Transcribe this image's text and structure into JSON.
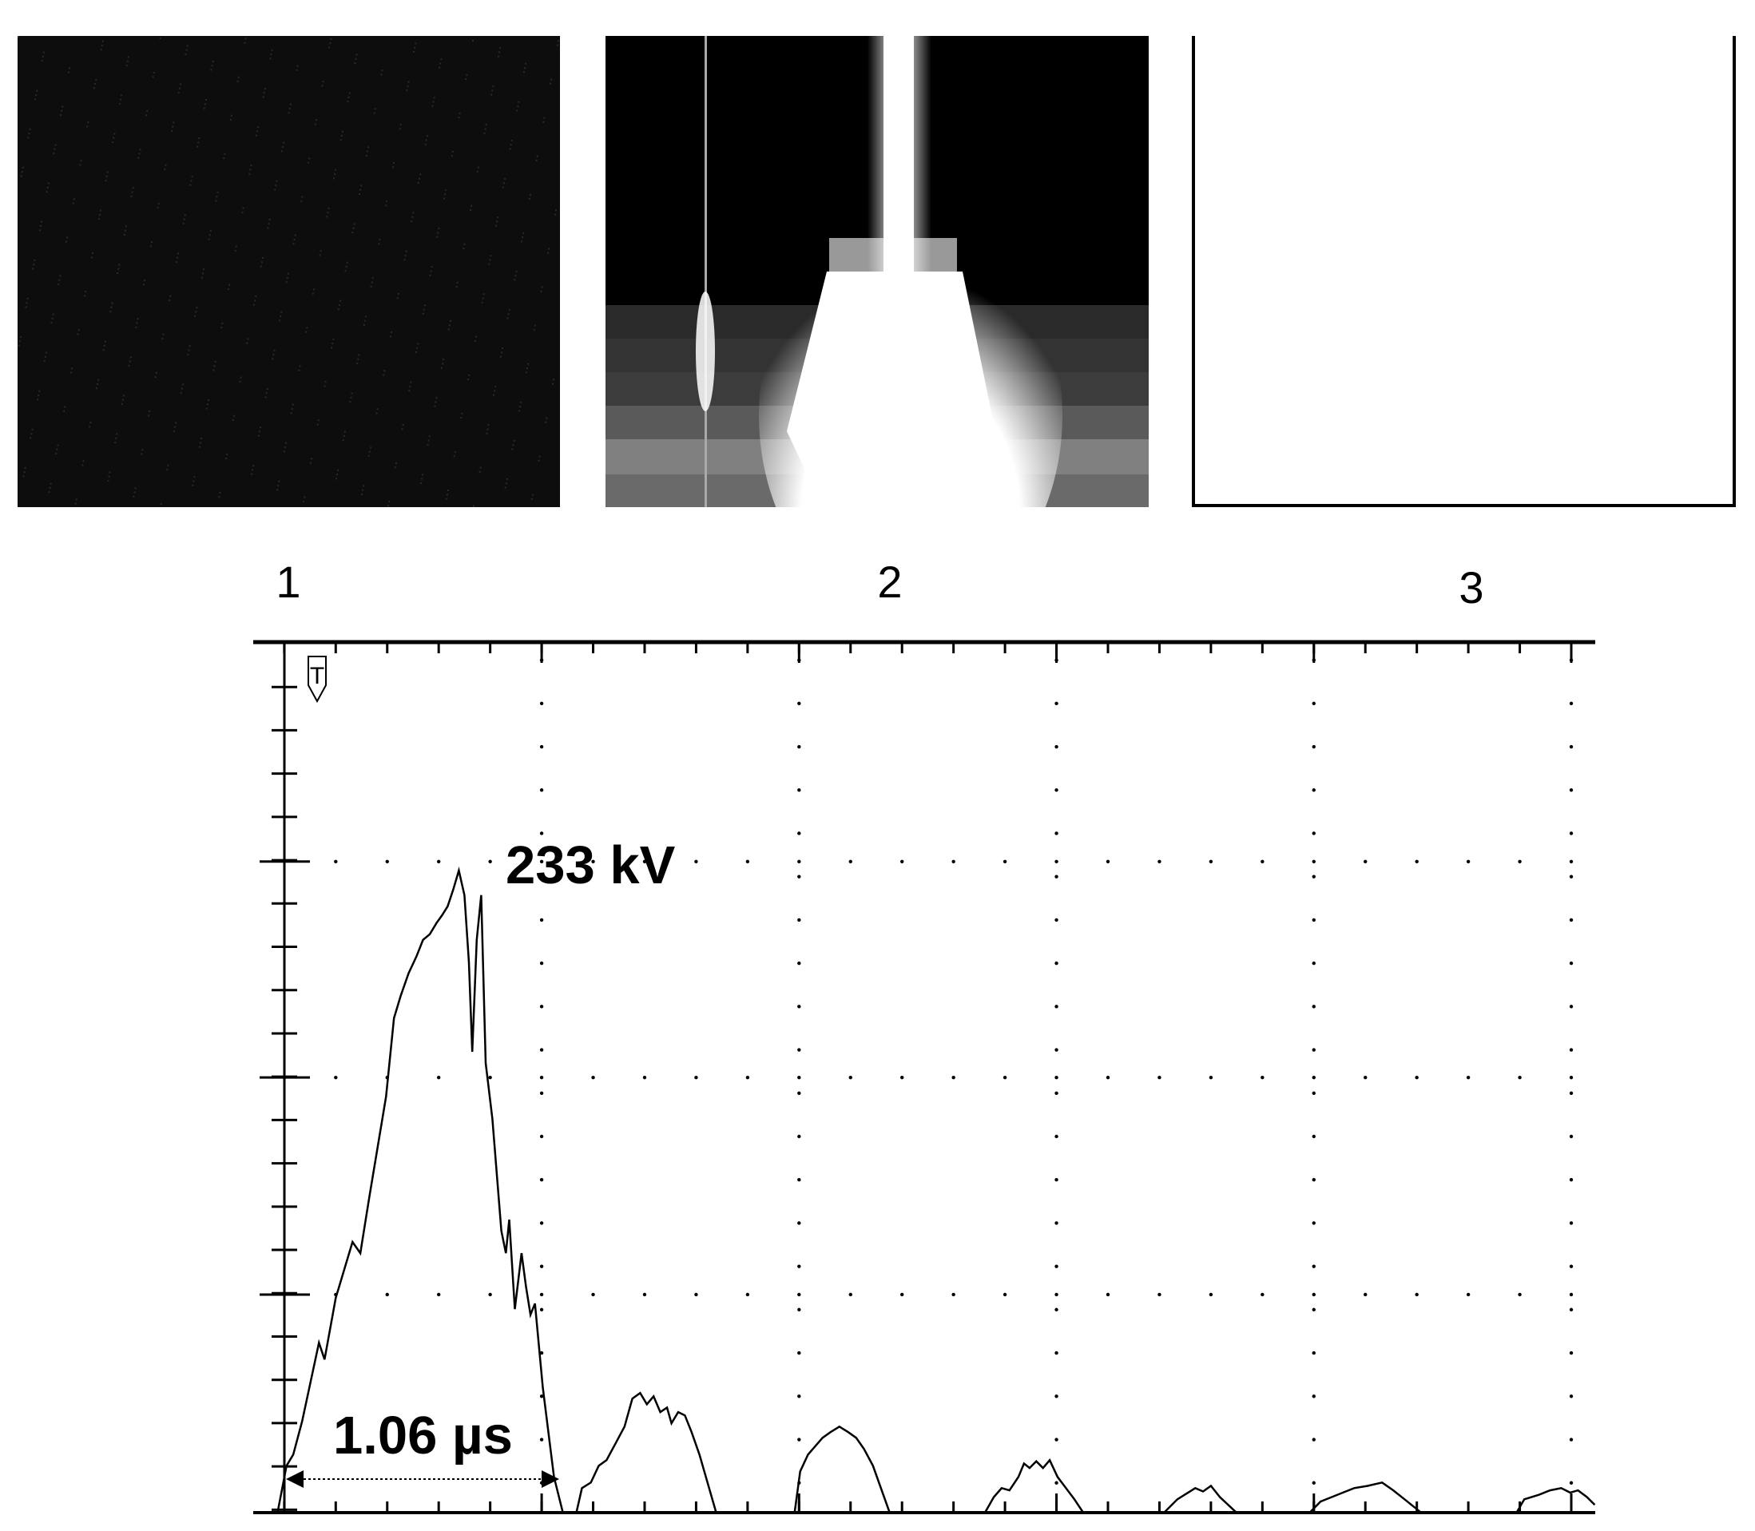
{
  "panels": {
    "labels": [
      "1",
      "2",
      "3"
    ]
  },
  "oscillogram": {
    "trigger_marker": "T",
    "peak_label": "233 kV",
    "duration_label": "1.06 µs"
  }
}
